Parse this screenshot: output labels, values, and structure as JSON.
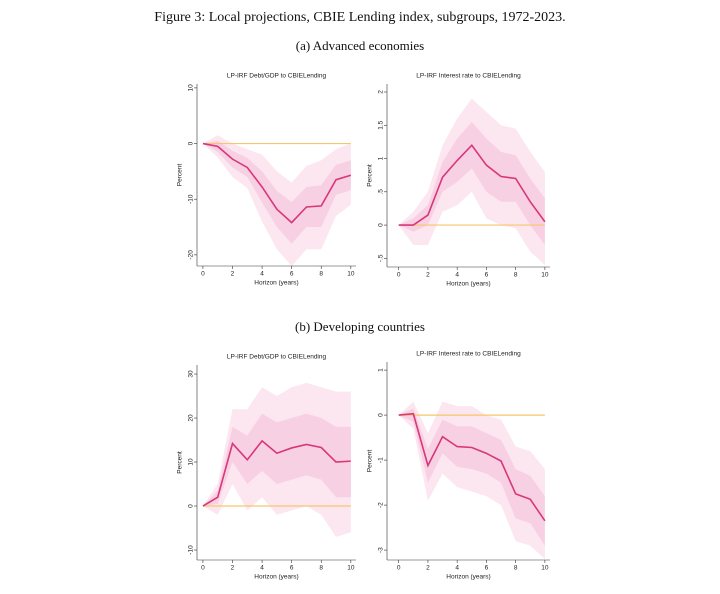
{
  "title": "Figure 3: Local projections, CBIE Lending index, subgroups, 1972-2023.",
  "section_titles": [
    "(a) Advanced economies",
    "(b) Developing countries"
  ],
  "chart_data": [
    {
      "type": "line",
      "title": "LP-IRF Debt/GDP to CBIELending",
      "xlabel": "Horizon (years)",
      "ylabel": "Percent",
      "x": [
        0,
        1,
        2,
        3,
        4,
        5,
        6,
        7,
        8,
        9,
        10
      ],
      "xlim": [
        -0.4,
        10.35
      ],
      "xticks": [
        0,
        2,
        4,
        6,
        8,
        10
      ],
      "ylim": [
        -22,
        10.7
      ],
      "yticks": [
        -20,
        -10,
        0,
        10
      ],
      "hline": 0,
      "hline_color": "#f7c66b",
      "bands": [
        {
          "color": "#fce6f0",
          "upper": [
            0,
            1.5,
            0,
            -1,
            -2,
            -5,
            -7,
            -4,
            -3,
            -1,
            0
          ],
          "lower": [
            0,
            -2.5,
            -6,
            -8,
            -14,
            -19,
            -22,
            -19,
            -19,
            -13,
            -11
          ]
        },
        {
          "color": "#f8d0e3",
          "upper": [
            0,
            0.5,
            -1.3,
            -2.6,
            -5,
            -8.5,
            -10.5,
            -7.8,
            -7.5,
            -3.8,
            -3
          ],
          "lower": [
            0,
            -1.5,
            -4.3,
            -6,
            -10.6,
            -15,
            -18,
            -15,
            -15,
            -9.2,
            -8.4
          ]
        }
      ],
      "series": [
        {
          "color": "#d8377a",
          "values": [
            0,
            -0.5,
            -2.8,
            -4.3,
            -7.8,
            -11.8,
            -14.2,
            -11.4,
            -11.2,
            -6.5,
            -5.7
          ]
        }
      ]
    },
    {
      "type": "line",
      "title": "LP-IRF  Interest rate to CBIELending",
      "xlabel": "Horizon (years)",
      "ylabel": "Percent",
      "x": [
        0,
        1,
        2,
        3,
        4,
        5,
        6,
        7,
        8,
        9,
        10
      ],
      "xlim": [
        -0.8,
        10.35
      ],
      "xticks": [
        0,
        2,
        4,
        6,
        8,
        10
      ],
      "ylim": [
        -0.63,
        2.12
      ],
      "yticks": [
        {
          "value": -0.5,
          "label": "-.5"
        },
        0,
        {
          "value": 0.5,
          "label": ".5"
        },
        1,
        1.5,
        2
      ],
      "hline": 0,
      "hline_color": "#f7c66b",
      "bands": [
        {
          "color": "#fce6f0",
          "upper": [
            0,
            0.2,
            0.5,
            1.2,
            1.6,
            1.9,
            1.7,
            1.5,
            1.45,
            1.1,
            0.8
          ],
          "lower": [
            0,
            -0.3,
            -0.3,
            0.2,
            0.3,
            0.5,
            0.1,
            0,
            -0.05,
            -0.4,
            -0.6
          ]
        },
        {
          "color": "#f8d0e3",
          "upper": [
            0,
            0.1,
            0.3,
            0.95,
            1.3,
            1.55,
            1.3,
            1.1,
            1.05,
            0.7,
            0.4
          ],
          "lower": [
            0,
            -0.1,
            0,
            0.5,
            0.65,
            0.85,
            0.5,
            0.35,
            0.35,
            0,
            -0.3
          ]
        }
      ],
      "series": [
        {
          "color": "#d8377a",
          "values": [
            0,
            0,
            0.15,
            0.72,
            0.97,
            1.2,
            0.9,
            0.73,
            0.7,
            0.35,
            0.05
          ]
        }
      ]
    },
    {
      "type": "line",
      "title": "LP-IRF Debt/GDP to CBIELending",
      "xlabel": "Horizon (years)",
      "ylabel": "Percent",
      "x": [
        0,
        1,
        2,
        3,
        4,
        5,
        6,
        7,
        8,
        9,
        10
      ],
      "xlim": [
        -0.4,
        10.35
      ],
      "xticks": [
        0,
        2,
        4,
        6,
        8,
        10
      ],
      "ylim": [
        -12.27,
        32.05
      ],
      "yticks": [
        -10,
        0,
        10,
        20,
        30
      ],
      "hline": 0,
      "hline_color": "#f7c66b",
      "bands": [
        {
          "color": "#fce6f0",
          "upper": [
            0,
            5,
            22,
            22,
            27,
            25,
            27,
            28,
            27,
            26,
            26
          ],
          "lower": [
            0,
            -2,
            5,
            -1,
            2,
            -2,
            -1,
            0,
            -2,
            -7,
            -6
          ]
        },
        {
          "color": "#f8d0e3",
          "upper": [
            0,
            3.5,
            18,
            16,
            21,
            19,
            20,
            21,
            20,
            18,
            18
          ],
          "lower": [
            0,
            0.5,
            10,
            5,
            8,
            5,
            6,
            7,
            6,
            2,
            2
          ]
        }
      ],
      "series": [
        {
          "color": "#d8377a",
          "values": [
            0,
            2,
            14.2,
            10.5,
            14.8,
            12,
            13.2,
            14,
            13.3,
            10,
            10.2
          ]
        }
      ]
    },
    {
      "type": "line",
      "title": "LP-IRF  Interest rate to CBIELending",
      "xlabel": "Horizon (years)",
      "ylabel": "Percent",
      "x": [
        0,
        1,
        2,
        3,
        4,
        5,
        6,
        7,
        8,
        9,
        10
      ],
      "xlim": [
        -0.8,
        10.35
      ],
      "xticks": [
        0,
        2,
        4,
        6,
        8,
        10
      ],
      "ylim": [
        -3.22,
        1.18
      ],
      "yticks": [
        -3,
        -2,
        -1,
        0,
        1
      ],
      "hline": 0,
      "hline_color": "#f7c66b",
      "bands": [
        {
          "color": "#fce6f0",
          "upper": [
            0,
            0.3,
            -0.4,
            0.3,
            0.2,
            0.2,
            0,
            -0.1,
            -0.7,
            -0.8,
            -1.2
          ],
          "lower": [
            0,
            -0.3,
            -1.9,
            -1.3,
            -1.6,
            -1.7,
            -1.8,
            -2,
            -2.8,
            -2.9,
            -3.2
          ]
        },
        {
          "color": "#f8d0e3",
          "upper": [
            0,
            0.15,
            -0.75,
            -0.1,
            -0.25,
            -0.25,
            -0.4,
            -0.55,
            -1.2,
            -1.35,
            -1.8
          ],
          "lower": [
            0,
            -0.15,
            -1.5,
            -0.85,
            -1.15,
            -1.2,
            -1.3,
            -1.5,
            -2.3,
            -2.4,
            -2.9
          ]
        }
      ],
      "series": [
        {
          "color": "#d8377a",
          "values": [
            0,
            0.03,
            -1.12,
            -0.48,
            -0.7,
            -0.72,
            -0.85,
            -1.02,
            -1.75,
            -1.87,
            -2.35
          ]
        }
      ]
    }
  ]
}
